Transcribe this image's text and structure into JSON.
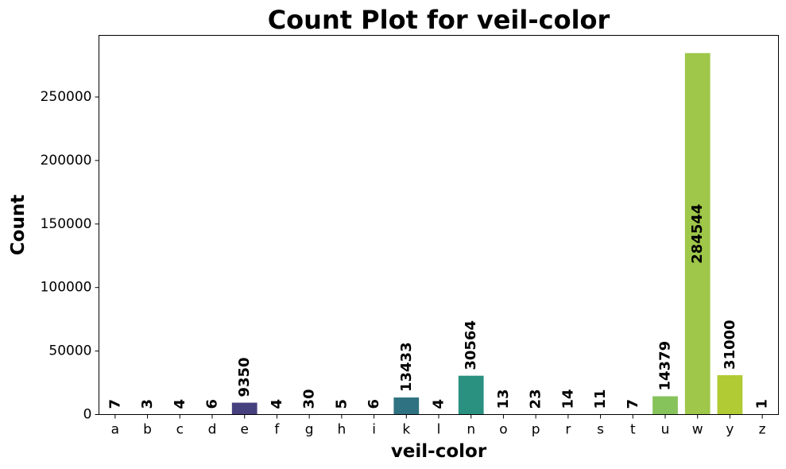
{
  "chart_data": {
    "type": "bar",
    "title": "Count Plot for veil-color",
    "xlabel": "veil-color",
    "ylabel": "Count",
    "categories": [
      "a",
      "b",
      "c",
      "d",
      "e",
      "f",
      "g",
      "h",
      "i",
      "k",
      "l",
      "n",
      "o",
      "p",
      "r",
      "s",
      "t",
      "u",
      "w",
      "y",
      "z"
    ],
    "values": [
      7,
      3,
      4,
      6,
      9350,
      4,
      30,
      5,
      6,
      13433,
      4,
      30564,
      13,
      23,
      14,
      11,
      7,
      14379,
      284544,
      31000,
      1
    ],
    "data_labels": [
      "7",
      "3",
      "4",
      "6",
      "9350",
      "4",
      "30",
      "5",
      "6",
      "13433",
      "4",
      "30564",
      "13",
      "23",
      "14",
      "11",
      "7",
      "14379",
      "284544",
      "31000",
      "1"
    ],
    "ylim": [
      0,
      298500
    ],
    "yticks": [
      0,
      50000,
      100000,
      150000,
      200000,
      250000
    ],
    "ytick_labels": [
      "0",
      "50000",
      "100000",
      "150000",
      "200000",
      "250000"
    ],
    "grid": false,
    "colors": {
      "e": "#46407f",
      "k": "#2f7281",
      "n": "#2a9080",
      "u": "#86c35a",
      "w": "#9fc749",
      "y": "#b0cb34",
      "default": "#46407f"
    }
  }
}
